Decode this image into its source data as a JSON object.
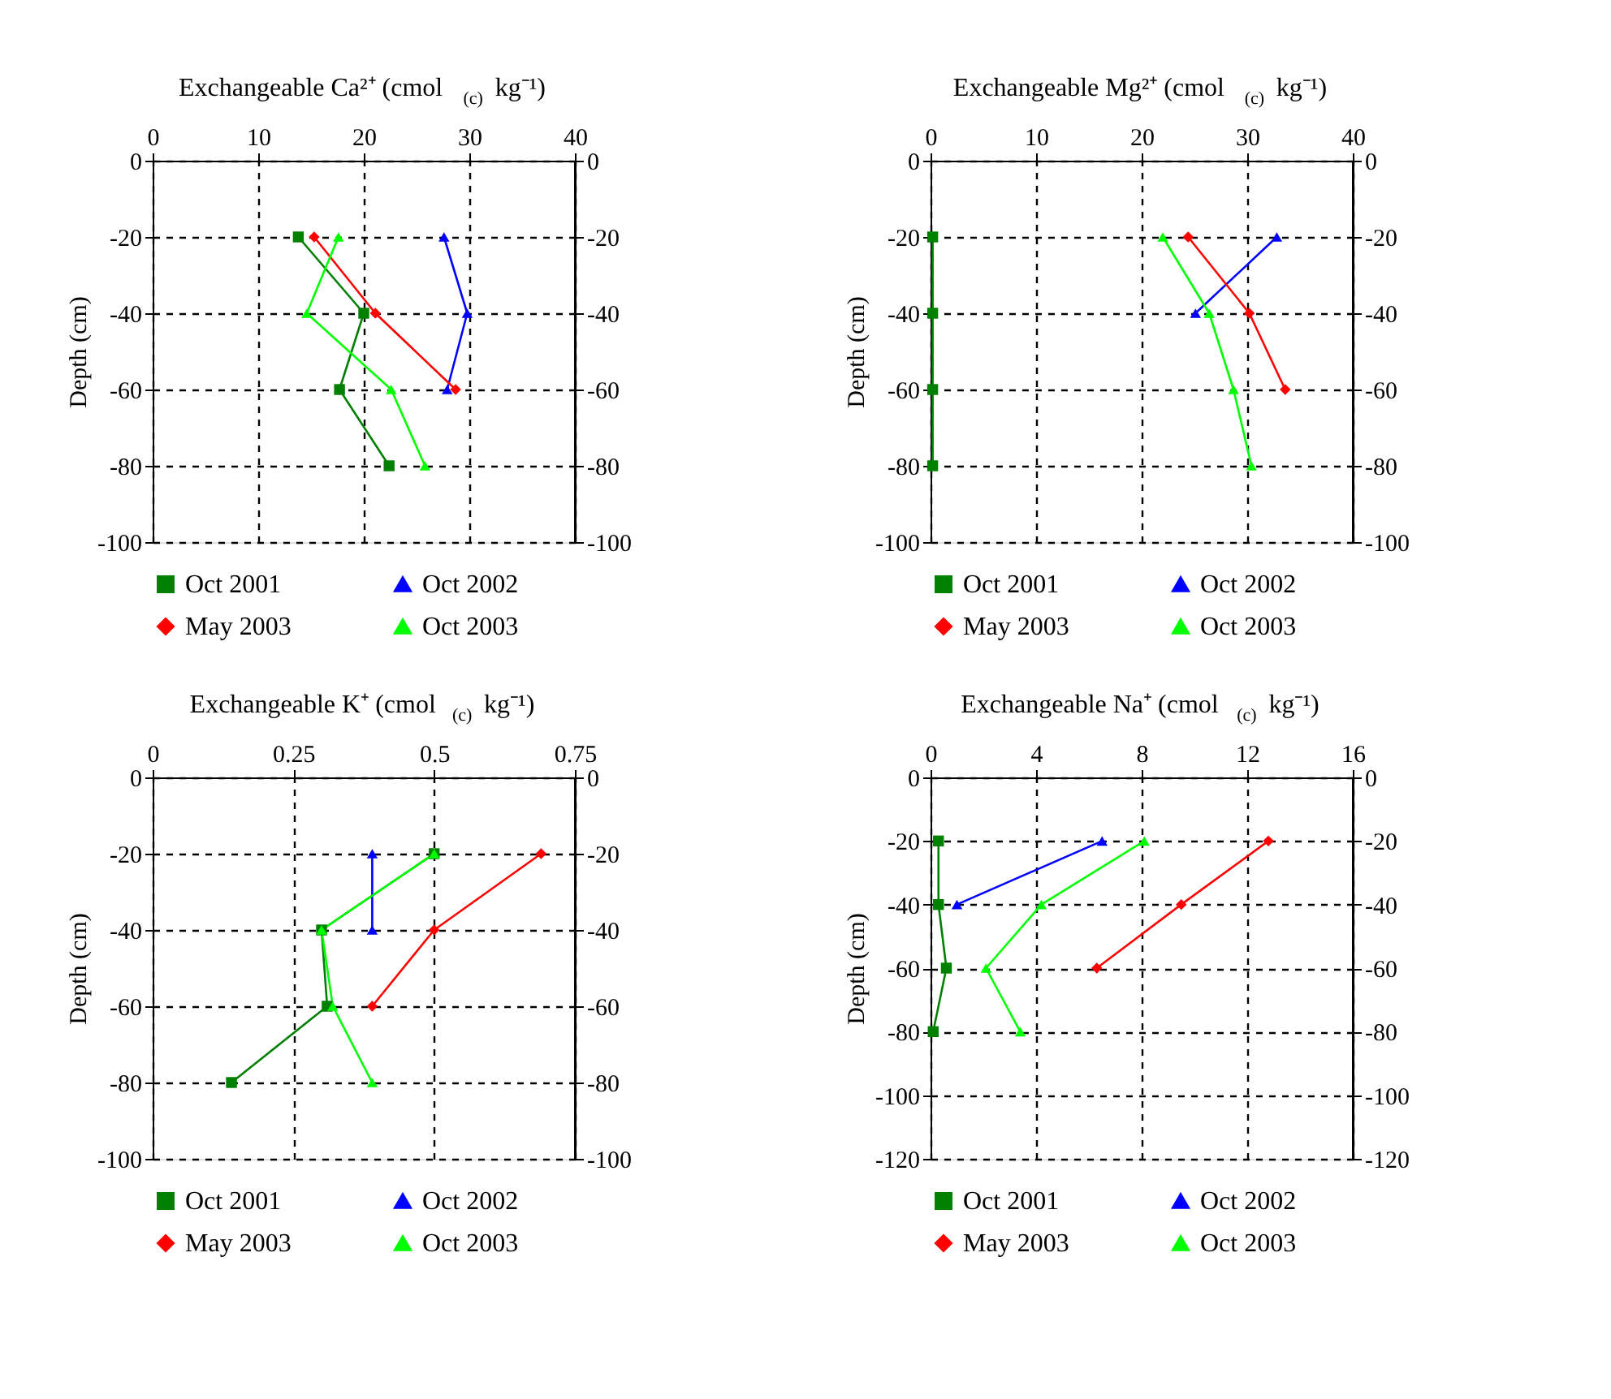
{
  "chart_data": [
    {
      "type": "line",
      "title": "Exchangeable Ca²⁺ (cmol$_{(c)}$ kg⁻¹)",
      "ylabel": "Depth (cm)",
      "xlim": [
        0,
        40
      ],
      "xticks": [
        0,
        10,
        20,
        30,
        40
      ],
      "ylim": [
        -100,
        0
      ],
      "yticks": [
        -100,
        -80,
        -60,
        -40,
        -20,
        0
      ],
      "y2lim": [
        -100,
        0
      ],
      "y2ticks": [
        -100,
        -80,
        -60,
        -40,
        -20,
        0
      ],
      "grid": true,
      "legend": "bottom",
      "series": [
        {
          "name": "Oct 2001",
          "color": "#008000",
          "marker": "square",
          "x": [
            13.8,
            20.0,
            17.7,
            22.4
          ],
          "values": [
            -20,
            -40,
            -60,
            -80
          ]
        },
        {
          "name": "Oct 2002",
          "color": "#0000ff",
          "marker": "triangle",
          "x": [
            27.6,
            29.8,
            27.9
          ],
          "values": [
            -20,
            -40,
            -60
          ]
        },
        {
          "name": "May 2003",
          "color": "#ff0000",
          "marker": "diamond",
          "x": [
            15.3,
            21.1,
            28.7
          ],
          "values": [
            -20,
            -40,
            -60
          ]
        },
        {
          "name": "Oct 2003",
          "color": "#00ff00",
          "marker": "triangle",
          "x": [
            17.6,
            14.6,
            22.6,
            25.8
          ],
          "values": [
            -20,
            -40,
            -60,
            -80
          ]
        }
      ]
    },
    {
      "type": "line",
      "title": "Exchangeable Mg²⁺ (cmol$_{(c)}$ kg⁻¹)",
      "ylabel": "Depth (cm)",
      "xlim": [
        0,
        40
      ],
      "xticks": [
        0,
        10,
        20,
        30,
        40
      ],
      "ylim": [
        -100,
        0
      ],
      "yticks": [
        -100,
        -80,
        -60,
        -40,
        -20,
        0
      ],
      "y2lim": [
        -100,
        0
      ],
      "y2ticks": [
        -100,
        -80,
        -60,
        -40,
        -20,
        0
      ],
      "grid": true,
      "legend": "bottom",
      "series": [
        {
          "name": "Oct 2001",
          "color": "#008000",
          "marker": "square",
          "x": [
            0.2,
            0.2,
            0.2,
            0.2
          ],
          "values": [
            -20,
            -40,
            -60,
            -80
          ]
        },
        {
          "name": "Oct 2002",
          "color": "#0000ff",
          "marker": "triangle",
          "x": [
            32.8,
            25.1
          ],
          "values": [
            -20,
            -40
          ]
        },
        {
          "name": "May 2003",
          "color": "#ff0000",
          "marker": "diamond",
          "x": [
            24.4,
            30.2,
            33.6
          ],
          "values": [
            -20,
            -40,
            -60
          ]
        },
        {
          "name": "Oct 2003",
          "color": "#00ff00",
          "marker": "triangle",
          "x": [
            22.0,
            26.4,
            28.7,
            30.4
          ],
          "values": [
            -20,
            -40,
            -60,
            -80
          ]
        }
      ]
    },
    {
      "type": "line",
      "title": "Exchangeable K⁺ (cmol$_{(c)}$ kg⁻¹)",
      "ylabel": "Depth (cm)",
      "xlim": [
        0,
        0.75
      ],
      "xticks": [
        0,
        0.25,
        0.5,
        0.75
      ],
      "ylim": [
        -100,
        0
      ],
      "yticks": [
        -100,
        -80,
        -60,
        -40,
        -20,
        0
      ],
      "y2lim": [
        -100,
        0
      ],
      "y2ticks": [
        -100,
        -80,
        -60,
        -40,
        -20,
        0
      ],
      "grid": true,
      "legend": "bottom",
      "series": [
        {
          "name": "Oct 2001",
          "color": "#008000",
          "marker": "square",
          "x": [
            0.5,
            0.3,
            0.31,
            0.14
          ],
          "values": [
            -20,
            -40,
            -60,
            -80
          ]
        },
        {
          "name": "Oct 2002",
          "color": "#0000ff",
          "marker": "triangle",
          "x": [
            0.39,
            0.39
          ],
          "values": [
            -20,
            -40
          ]
        },
        {
          "name": "May 2003",
          "color": "#ff0000",
          "marker": "diamond",
          "x": [
            0.69,
            0.5,
            0.39
          ],
          "values": [
            -20,
            -40,
            -60
          ]
        },
        {
          "name": "Oct 2003",
          "color": "#00ff00",
          "marker": "triangle",
          "x": [
            0.5,
            0.3,
            0.32,
            0.39
          ],
          "values": [
            -20,
            -40,
            -60,
            -80
          ]
        }
      ]
    },
    {
      "type": "line",
      "title": "Exchangeable Na⁺ (cmol$_{(c)}$ kg⁻¹)",
      "ylabel": "Depth (cm)",
      "xlim": [
        0,
        16
      ],
      "xticks": [
        0,
        4,
        8,
        12,
        16
      ],
      "ylim": [
        -120,
        0
      ],
      "yticks": [
        -120,
        -100,
        -80,
        -60,
        -40,
        -20,
        0
      ],
      "y2lim": [
        -120,
        0
      ],
      "y2ticks": [
        -120,
        -100,
        -80,
        -60,
        -40,
        -20,
        0
      ],
      "grid": true,
      "legend": "bottom",
      "series": [
        {
          "name": "Oct 2001",
          "color": "#008000",
          "marker": "square",
          "x": [
            0.3,
            0.3,
            0.6,
            0.1
          ],
          "values": [
            -20,
            -40,
            -60,
            -80
          ]
        },
        {
          "name": "Oct 2002",
          "color": "#0000ff",
          "marker": "triangle",
          "x": [
            6.5,
            1.0
          ],
          "values": [
            -20,
            -40
          ]
        },
        {
          "name": "May 2003",
          "color": "#ff0000",
          "marker": "diamond",
          "x": [
            12.8,
            9.5,
            6.3
          ],
          "values": [
            -20,
            -40,
            -60
          ]
        },
        {
          "name": "Oct 2003",
          "color": "#00ff00",
          "marker": "triangle",
          "x": [
            8.1,
            4.2,
            2.1,
            3.4
          ],
          "values": [
            -20,
            -40,
            -60,
            -80
          ]
        }
      ]
    }
  ]
}
